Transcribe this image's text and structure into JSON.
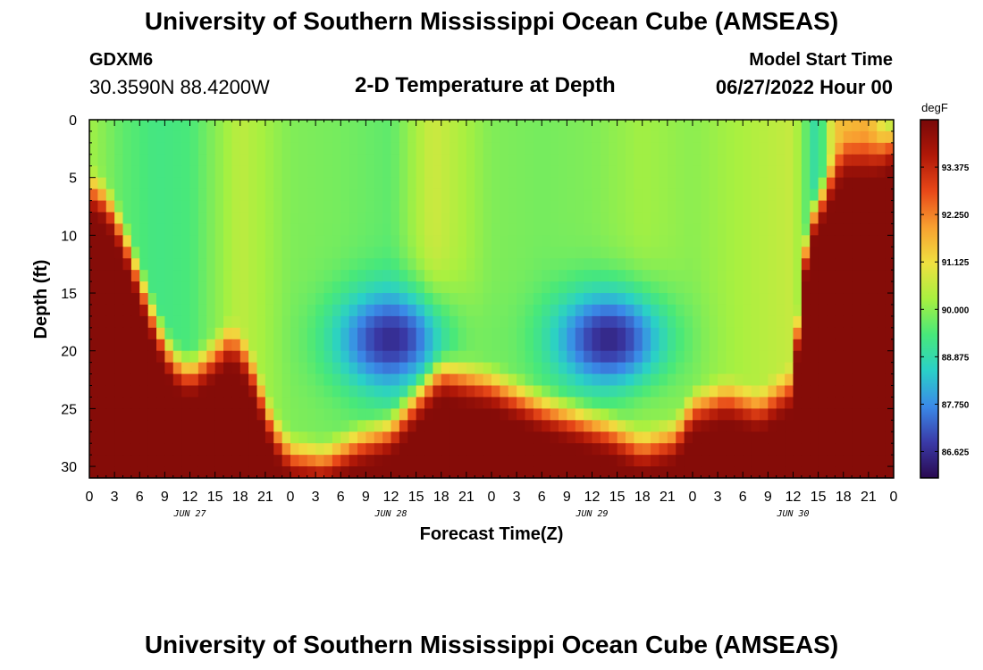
{
  "header": {
    "title": "University of Southern Mississippi Ocean Cube (AMSEAS)",
    "station_id": "GDXM6",
    "coords": "30.3590N  88.4200W",
    "plot_title": "2-D Temperature at Depth",
    "start_label": "Model Start Time",
    "start_value": "06/27/2022 Hour 00"
  },
  "footer": {
    "title": "University of Southern Mississippi Ocean Cube (AMSEAS)"
  },
  "colors": {
    "colormap": [
      "#2a0a50",
      "#3a3aa8",
      "#3a8ae8",
      "#2ad0c8",
      "#48e87a",
      "#a8f040",
      "#f0e040",
      "#f8a030",
      "#e84818",
      "#b01808",
      "#780808"
    ]
  },
  "chart_data": {
    "type": "heatmap",
    "xlabel": "Forecast Time(Z)",
    "ylabel": "Depth (ft)",
    "x_range_hours": [
      0,
      96
    ],
    "x_tick_labels": [
      "0",
      "3",
      "6",
      "9",
      "12",
      "15",
      "18",
      "21",
      "0",
      "3",
      "6",
      "9",
      "12",
      "15",
      "18",
      "21",
      "0",
      "3",
      "6",
      "9",
      "12",
      "15",
      "18",
      "21",
      "0",
      "3",
      "6",
      "9",
      "12",
      "15",
      "18",
      "21",
      "0"
    ],
    "day_labels": [
      {
        "label": "JUN 27",
        "hour": 12
      },
      {
        "label": "JUN 28",
        "hour": 36
      },
      {
        "label": "JUN 29",
        "hour": 60
      },
      {
        "label": "JUN 30",
        "hour": 84
      }
    ],
    "y_range_ft": [
      0,
      31
    ],
    "y_tick_labels": [
      "0",
      "5",
      "10",
      "15",
      "20",
      "25",
      "30"
    ],
    "colorbar": {
      "unit": "degF",
      "range": [
        86.0,
        94.5
      ],
      "labels": [
        "93.375",
        "92.250",
        "91.125",
        "90.000",
        "88.875",
        "87.750",
        "86.625"
      ]
    },
    "surface_temp": [
      [
        0,
        90.2
      ],
      [
        4,
        89.6
      ],
      [
        8,
        89.3
      ],
      [
        12,
        89.4
      ],
      [
        18,
        90.5
      ],
      [
        24,
        89.9
      ],
      [
        30,
        89.8
      ],
      [
        36,
        89.6
      ],
      [
        41,
        90.7
      ],
      [
        48,
        89.9
      ],
      [
        54,
        89.8
      ],
      [
        60,
        89.9
      ],
      [
        66,
        90.2
      ],
      [
        72,
        90.0
      ],
      [
        78,
        90.3
      ],
      [
        84,
        90.6
      ],
      [
        87,
        88.7
      ],
      [
        89,
        91.5
      ],
      [
        93,
        91.8
      ],
      [
        96,
        90.2
      ]
    ],
    "mixed_layer_depth_ft": [
      [
        0,
        6
      ],
      [
        2,
        7
      ],
      [
        4,
        10
      ],
      [
        6,
        14
      ],
      [
        8,
        18
      ],
      [
        10,
        21
      ],
      [
        12,
        22
      ],
      [
        14,
        21
      ],
      [
        17,
        19
      ],
      [
        19,
        21
      ],
      [
        22,
        27
      ],
      [
        24,
        29
      ],
      [
        28,
        29.5
      ],
      [
        32,
        28
      ],
      [
        36,
        27
      ],
      [
        42,
        22
      ],
      [
        48,
        23
      ],
      [
        54,
        25
      ],
      [
        58,
        26
      ],
      [
        62,
        27
      ],
      [
        66,
        28.5
      ],
      [
        70,
        27.5
      ],
      [
        72,
        25
      ],
      [
        76,
        24
      ],
      [
        80,
        25
      ],
      [
        84,
        23
      ],
      [
        85,
        14
      ],
      [
        86,
        9
      ],
      [
        88,
        6
      ],
      [
        90,
        3
      ],
      [
        94,
        3
      ],
      [
        96,
        2
      ]
    ],
    "cold_cores": [
      {
        "center_hour": 36,
        "center_depth_ft": 19,
        "min_temp": 86.6
      },
      {
        "center_hour": 62,
        "center_depth_ft": 19,
        "min_temp": 86.5
      }
    ],
    "bottom_max_temp": 94.3
  }
}
